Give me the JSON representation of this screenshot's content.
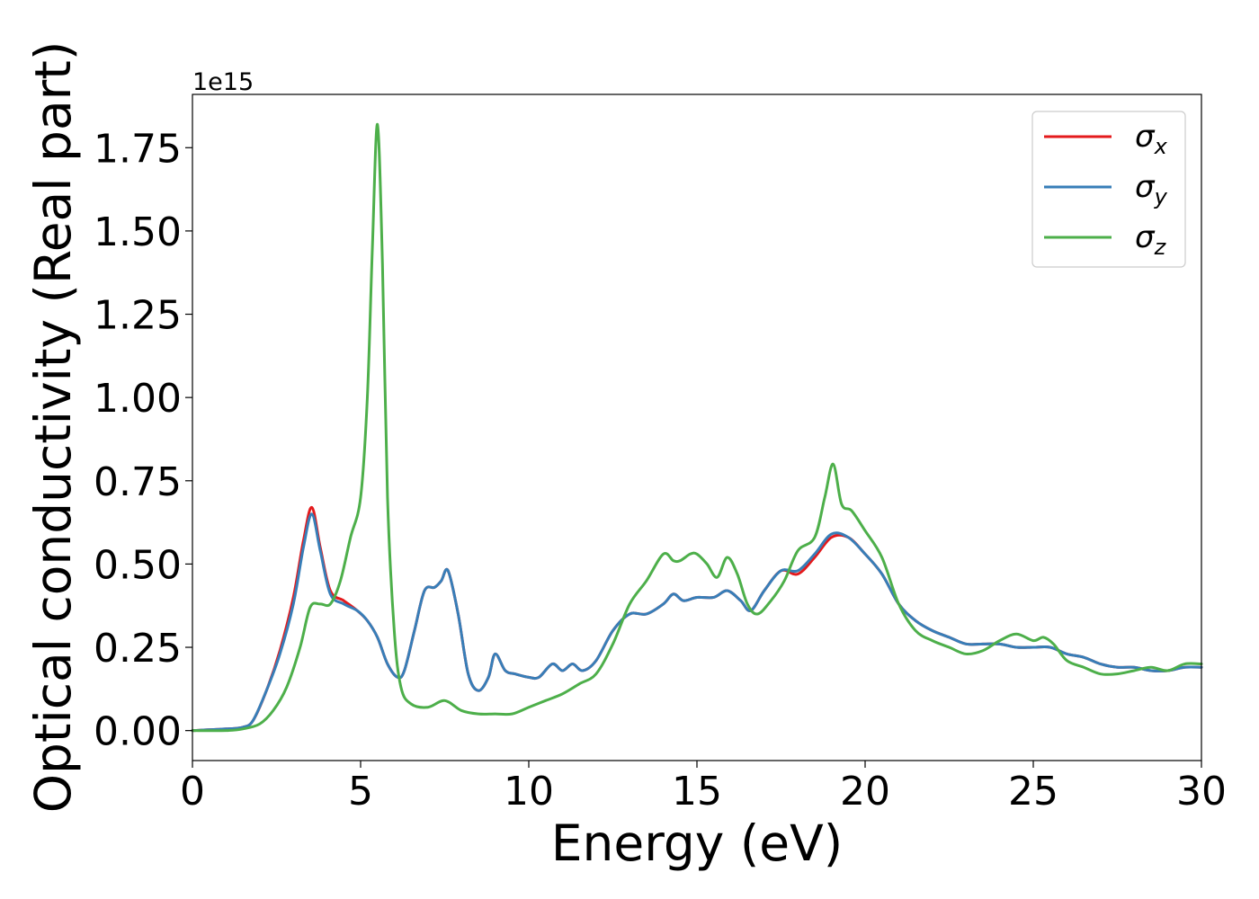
{
  "chart_data": {
    "type": "line",
    "xlabel": "Energy (eV)",
    "ylabel": "Optical conductivity (Real part)",
    "y_offset_text": "1e15",
    "xlim": [
      0,
      30
    ],
    "ylim": [
      -0.09,
      1.91
    ],
    "x_ticks": [
      0,
      5,
      10,
      15,
      20,
      25,
      30
    ],
    "x_tick_labels": [
      "0",
      "5",
      "10",
      "15",
      "20",
      "25",
      "30"
    ],
    "y_ticks": [
      0.0,
      0.25,
      0.5,
      0.75,
      1.0,
      1.25,
      1.5,
      1.75
    ],
    "y_tick_labels": [
      "0.00",
      "0.25",
      "0.50",
      "0.75",
      "1.00",
      "1.25",
      "1.50",
      "1.75"
    ],
    "grid": false,
    "legend_position": "top-right",
    "series": [
      {
        "name": "σx",
        "legend_symbol": "σ",
        "legend_subscript": "x",
        "color": "#e41a1c",
        "x": [
          0,
          1,
          1.5,
          1.8,
          2.2,
          2.6,
          3.0,
          3.3,
          3.55,
          3.8,
          4.1,
          4.5,
          4.9,
          5.2,
          5.5,
          5.8,
          6.1,
          6.3,
          6.6,
          6.9,
          7.2,
          7.4,
          7.6,
          7.9,
          8.2,
          8.5,
          8.8,
          9.0,
          9.3,
          9.6,
          10.0,
          10.3,
          10.7,
          11.0,
          11.3,
          11.6,
          12.0,
          12.5,
          13.0,
          13.5,
          14.0,
          14.3,
          14.6,
          15.0,
          15.5,
          15.9,
          16.3,
          16.6,
          17.0,
          17.5,
          18.0,
          18.5,
          19.0,
          19.5,
          20.0,
          20.5,
          21.0,
          21.5,
          22.0,
          22.5,
          23.0,
          23.5,
          24.0,
          24.5,
          25.0,
          25.5,
          26.0,
          26.5,
          27.0,
          27.5,
          28.0,
          28.5,
          29.0,
          29.5,
          30.0
        ],
        "y": [
          0.0,
          0.005,
          0.01,
          0.03,
          0.12,
          0.24,
          0.4,
          0.57,
          0.67,
          0.55,
          0.42,
          0.39,
          0.36,
          0.33,
          0.28,
          0.2,
          0.16,
          0.18,
          0.3,
          0.42,
          0.43,
          0.45,
          0.48,
          0.35,
          0.17,
          0.12,
          0.16,
          0.23,
          0.18,
          0.17,
          0.16,
          0.16,
          0.2,
          0.18,
          0.2,
          0.18,
          0.21,
          0.3,
          0.35,
          0.35,
          0.38,
          0.41,
          0.39,
          0.4,
          0.4,
          0.42,
          0.39,
          0.36,
          0.42,
          0.48,
          0.47,
          0.52,
          0.58,
          0.58,
          0.53,
          0.47,
          0.38,
          0.33,
          0.3,
          0.28,
          0.26,
          0.26,
          0.26,
          0.25,
          0.25,
          0.25,
          0.23,
          0.22,
          0.2,
          0.19,
          0.19,
          0.18,
          0.18,
          0.19,
          0.19
        ]
      },
      {
        "name": "σy",
        "legend_symbol": "σ",
        "legend_subscript": "y",
        "color": "#377eb8",
        "x": [
          0,
          1,
          1.5,
          1.8,
          2.2,
          2.6,
          3.0,
          3.3,
          3.55,
          3.8,
          4.1,
          4.5,
          4.9,
          5.2,
          5.5,
          5.8,
          6.1,
          6.3,
          6.6,
          6.9,
          7.2,
          7.4,
          7.6,
          7.9,
          8.2,
          8.5,
          8.8,
          9.0,
          9.3,
          9.6,
          10.0,
          10.3,
          10.7,
          11.0,
          11.3,
          11.6,
          12.0,
          12.5,
          13.0,
          13.5,
          14.0,
          14.3,
          14.6,
          15.0,
          15.5,
          15.9,
          16.3,
          16.6,
          17.0,
          17.5,
          18.0,
          18.5,
          19.0,
          19.5,
          20.0,
          20.5,
          21.0,
          21.5,
          22.0,
          22.5,
          23.0,
          23.5,
          24.0,
          24.5,
          25.0,
          25.5,
          26.0,
          26.5,
          27.0,
          27.5,
          28.0,
          28.5,
          29.0,
          29.5,
          30.0
        ],
        "y": [
          0.0,
          0.005,
          0.01,
          0.03,
          0.12,
          0.23,
          0.38,
          0.55,
          0.65,
          0.54,
          0.41,
          0.38,
          0.36,
          0.33,
          0.28,
          0.2,
          0.16,
          0.18,
          0.3,
          0.42,
          0.43,
          0.45,
          0.48,
          0.35,
          0.17,
          0.12,
          0.16,
          0.23,
          0.18,
          0.17,
          0.16,
          0.16,
          0.2,
          0.18,
          0.2,
          0.18,
          0.21,
          0.3,
          0.35,
          0.35,
          0.38,
          0.41,
          0.39,
          0.4,
          0.4,
          0.42,
          0.39,
          0.36,
          0.42,
          0.48,
          0.48,
          0.53,
          0.59,
          0.58,
          0.53,
          0.47,
          0.38,
          0.33,
          0.3,
          0.28,
          0.26,
          0.26,
          0.26,
          0.25,
          0.25,
          0.25,
          0.23,
          0.22,
          0.2,
          0.19,
          0.19,
          0.18,
          0.18,
          0.19,
          0.19
        ]
      },
      {
        "name": "σz",
        "legend_symbol": "σ",
        "legend_subscript": "z",
        "color": "#4daf4a",
        "x": [
          0,
          1,
          1.5,
          2.0,
          2.4,
          2.8,
          3.2,
          3.5,
          3.8,
          4.1,
          4.4,
          4.7,
          5.0,
          5.2,
          5.35,
          5.5,
          5.65,
          5.8,
          6.0,
          6.2,
          6.5,
          7.0,
          7.5,
          8.0,
          8.5,
          9.0,
          9.5,
          10.0,
          10.5,
          11.0,
          11.5,
          12.0,
          12.5,
          13.0,
          13.5,
          14.0,
          14.3,
          14.5,
          14.8,
          15.0,
          15.3,
          15.6,
          15.9,
          16.2,
          16.5,
          16.8,
          17.2,
          17.6,
          18.0,
          18.5,
          18.8,
          19.05,
          19.3,
          19.6,
          20.0,
          20.5,
          21.0,
          21.5,
          22.0,
          22.5,
          23.0,
          23.5,
          24.0,
          24.5,
          25.0,
          25.3,
          25.6,
          26.0,
          26.5,
          27.0,
          27.5,
          28.0,
          28.5,
          29.0,
          29.5,
          30.0
        ],
        "y": [
          0.0,
          0.0,
          0.005,
          0.02,
          0.06,
          0.13,
          0.25,
          0.37,
          0.38,
          0.38,
          0.45,
          0.58,
          0.7,
          1.0,
          1.45,
          1.82,
          1.4,
          0.7,
          0.3,
          0.13,
          0.08,
          0.07,
          0.09,
          0.06,
          0.05,
          0.05,
          0.05,
          0.07,
          0.09,
          0.11,
          0.14,
          0.17,
          0.26,
          0.38,
          0.45,
          0.53,
          0.51,
          0.51,
          0.53,
          0.53,
          0.5,
          0.46,
          0.52,
          0.47,
          0.38,
          0.35,
          0.39,
          0.45,
          0.54,
          0.58,
          0.7,
          0.8,
          0.68,
          0.66,
          0.6,
          0.52,
          0.38,
          0.3,
          0.27,
          0.25,
          0.23,
          0.24,
          0.27,
          0.29,
          0.27,
          0.28,
          0.26,
          0.21,
          0.19,
          0.17,
          0.17,
          0.18,
          0.19,
          0.18,
          0.2,
          0.2
        ]
      }
    ]
  }
}
